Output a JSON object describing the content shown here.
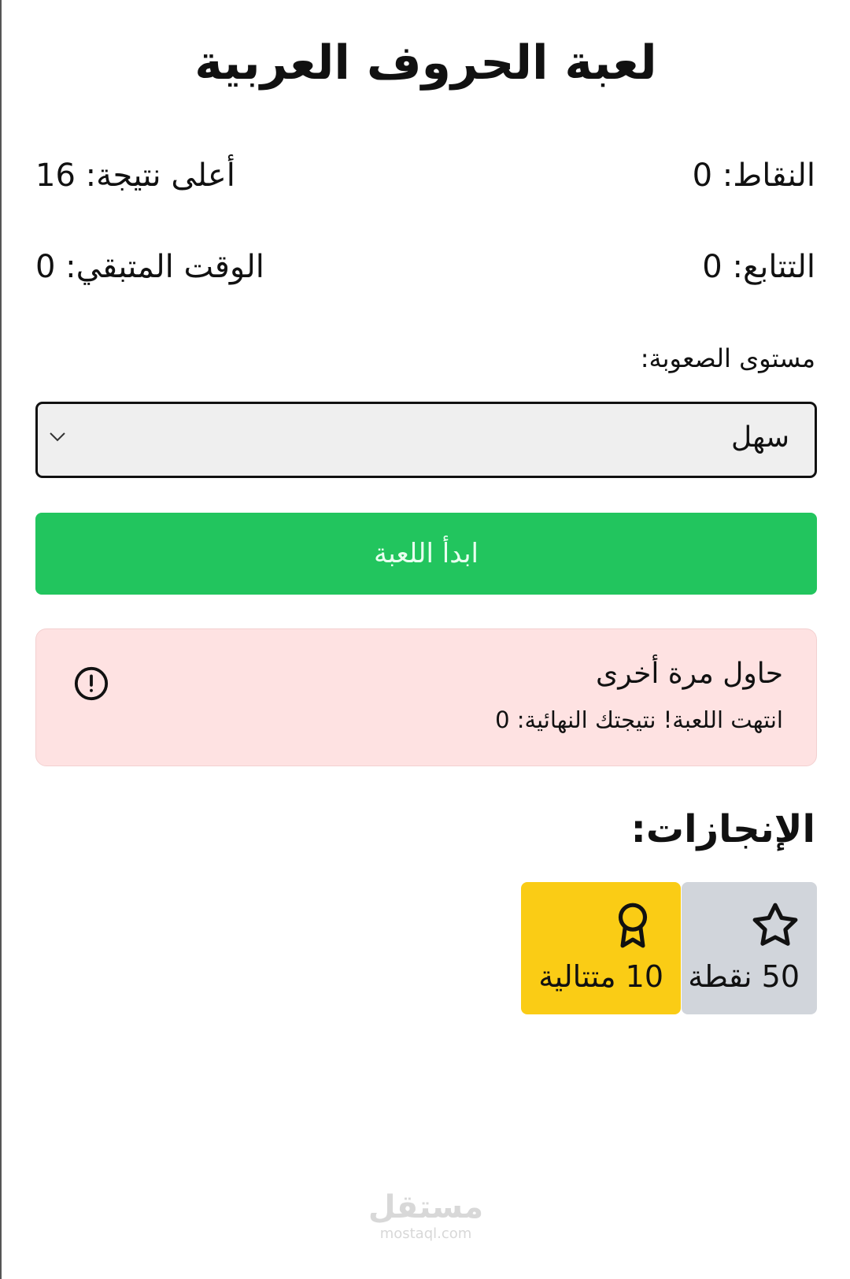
{
  "title": "لعبة الحروف العربية",
  "stats": {
    "score": "النقاط: 0",
    "high_score": "أعلى نتيجة: 16",
    "streak": "التتابع: 0",
    "time_left": "الوقت المتبقي: 0"
  },
  "difficulty": {
    "label": "مستوى الصعوبة:",
    "selected": "سهل"
  },
  "start_button": "ابدأ اللعبة",
  "alert": {
    "title": "حاول مرة أخرى",
    "description": "انتهت اللعبة! نتيجتك النهائية: 0",
    "icon": "alert-circle-icon"
  },
  "achievements": {
    "heading": "الإنجازات:",
    "items": [
      {
        "label": "50 نقطة",
        "icon": "star-icon",
        "color": "#d1d5db",
        "unlocked": false
      },
      {
        "label": "10 متتالية",
        "icon": "award-icon",
        "color": "#facc15",
        "unlocked": true
      }
    ]
  },
  "watermark": {
    "arabic": "مستقل",
    "latin": "mostaql.com"
  },
  "colors": {
    "primary": "#22c55e",
    "alert_bg": "#fee2e2",
    "gold": "#facc15",
    "gray": "#d1d5db"
  }
}
